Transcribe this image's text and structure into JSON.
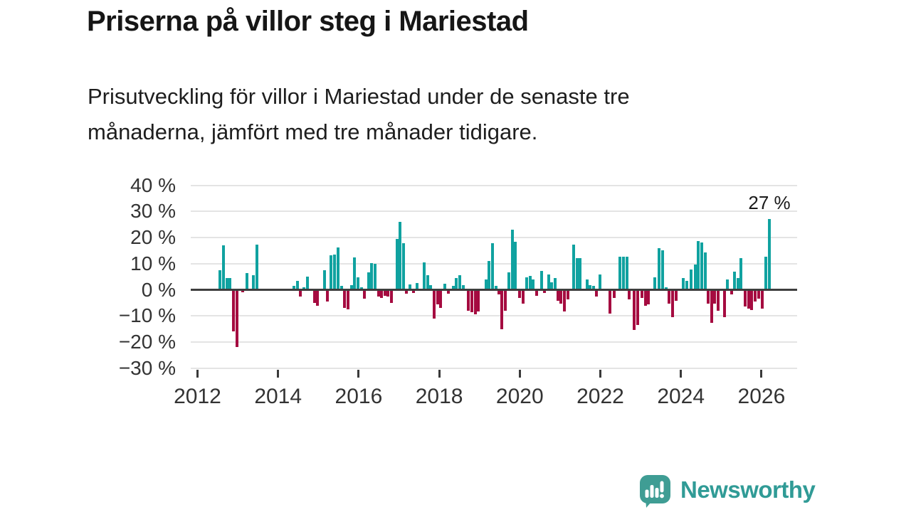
{
  "header": {
    "title": "Priserna på villor steg i Mariestad",
    "subtitle_line1": "Prisutveckling för villor i Mariestad under de senaste tre",
    "subtitle_line2": "månaderna, jämfört med tre månader tidigare."
  },
  "chart_data": {
    "type": "bar",
    "title": "Priserna på villor steg i Mariestad",
    "xlabel": "",
    "ylabel": "",
    "ylim": [
      -30,
      40
    ],
    "xlim": [
      2011.85,
      2026.9
    ],
    "grid": "horizontal",
    "legend": "none",
    "yticks": [
      {
        "v": 40,
        "label": "40 %"
      },
      {
        "v": 30,
        "label": "30 %"
      },
      {
        "v": 20,
        "label": "20 %"
      },
      {
        "v": 10,
        "label": "10 %"
      },
      {
        "v": 0,
        "label": "0 %"
      },
      {
        "v": -10,
        "label": "−10 %"
      },
      {
        "v": -20,
        "label": "−20 %"
      },
      {
        "v": -30,
        "label": "−30 %"
      }
    ],
    "xticks": [
      {
        "v": 2012,
        "label": "2012"
      },
      {
        "v": 2014,
        "label": "2014"
      },
      {
        "v": 2016,
        "label": "2016"
      },
      {
        "v": 2018,
        "label": "2018"
      },
      {
        "v": 2020,
        "label": "2020"
      },
      {
        "v": 2022,
        "label": "2022"
      },
      {
        "v": 2024,
        "label": "2024"
      },
      {
        "v": 2026,
        "label": "2026"
      }
    ],
    "annotation": {
      "label": "27 %",
      "x": 2026.19,
      "v": 27
    },
    "colors": {
      "positive": "#10a2a0",
      "negative": "#a50b40",
      "zero_line": "#3e3e3e",
      "grid": "#e4e4e4",
      "axis_text": "#333333"
    },
    "bars": [
      [
        2012.56,
        7.4
      ],
      [
        2012.64,
        17
      ],
      [
        2012.74,
        4.4
      ],
      [
        2012.81,
        4.4
      ],
      [
        2012.9,
        -16
      ],
      [
        2012.98,
        -22
      ],
      [
        2013.12,
        -1
      ],
      [
        2013.23,
        6.4
      ],
      [
        2013.39,
        5.6
      ],
      [
        2013.47,
        17.4
      ],
      [
        2014.4,
        1.4
      ],
      [
        2014.48,
        3.3
      ],
      [
        2014.56,
        -2.6
      ],
      [
        2014.64,
        1.0
      ],
      [
        2014.72,
        5.0
      ],
      [
        2014.9,
        -4.9
      ],
      [
        2014.98,
        -6.0
      ],
      [
        2015.15,
        7.4
      ],
      [
        2015.22,
        -4.5
      ],
      [
        2015.32,
        13.1
      ],
      [
        2015.4,
        13.5
      ],
      [
        2015.49,
        16.1
      ],
      [
        2015.57,
        1.4
      ],
      [
        2015.65,
        -7.0
      ],
      [
        2015.73,
        -7.5
      ],
      [
        2015.83,
        1.7
      ],
      [
        2015.9,
        12.3
      ],
      [
        2015.99,
        4.7
      ],
      [
        2016.07,
        1.0
      ],
      [
        2016.15,
        -3.5
      ],
      [
        2016.24,
        6.8
      ],
      [
        2016.32,
        10.3
      ],
      [
        2016.4,
        9.9
      ],
      [
        2016.49,
        -2.6
      ],
      [
        2016.57,
        -3.2
      ],
      [
        2016.66,
        -2.3
      ],
      [
        2016.73,
        -2.6
      ],
      [
        2016.81,
        -4.9
      ],
      [
        2016.95,
        19.5
      ],
      [
        2017.03,
        26
      ],
      [
        2017.12,
        17.8
      ],
      [
        2017.19,
        -1.4
      ],
      [
        2017.27,
        2.0
      ],
      [
        2017.37,
        -1.1
      ],
      [
        2017.45,
        2.5
      ],
      [
        2017.63,
        10.5
      ],
      [
        2017.71,
        5.6
      ],
      [
        2017.79,
        1.7
      ],
      [
        2017.88,
        -11.1
      ],
      [
        2017.96,
        -5.7
      ],
      [
        2018.04,
        -7.0
      ],
      [
        2018.14,
        2.3
      ],
      [
        2018.22,
        -1.6
      ],
      [
        2018.35,
        1.6
      ],
      [
        2018.43,
        4.4
      ],
      [
        2018.51,
        5.7
      ],
      [
        2018.6,
        1.8
      ],
      [
        2018.72,
        -8.1
      ],
      [
        2018.81,
        -8.6
      ],
      [
        2018.89,
        -9.5
      ],
      [
        2018.97,
        -8.4
      ],
      [
        2019.16,
        3.9
      ],
      [
        2019.24,
        11.1
      ],
      [
        2019.33,
        17.8
      ],
      [
        2019.41,
        1.4
      ],
      [
        2019.49,
        -1.7
      ],
      [
        2019.56,
        -15.0
      ],
      [
        2019.64,
        -8.1
      ],
      [
        2019.73,
        6.8
      ],
      [
        2019.81,
        23
      ],
      [
        2019.89,
        18.3
      ],
      [
        2020.0,
        -3.0
      ],
      [
        2020.08,
        -5.3
      ],
      [
        2020.17,
        4.8
      ],
      [
        2020.25,
        5.2
      ],
      [
        2020.33,
        4.1
      ],
      [
        2020.42,
        -2.2
      ],
      [
        2020.54,
        7.2
      ],
      [
        2020.62,
        -1.3
      ],
      [
        2020.71,
        5.9
      ],
      [
        2020.79,
        2.9
      ],
      [
        2020.87,
        4.4
      ],
      [
        2020.95,
        -4.3
      ],
      [
        2021.02,
        -5.2
      ],
      [
        2021.1,
        -8.4
      ],
      [
        2021.19,
        -3.6
      ],
      [
        2021.34,
        17.2
      ],
      [
        2021.42,
        12.1
      ],
      [
        2021.5,
        12.1
      ],
      [
        2021.67,
        4.1
      ],
      [
        2021.75,
        1.8
      ],
      [
        2021.84,
        1.4
      ],
      [
        2021.91,
        -2.5
      ],
      [
        2021.99,
        6.0
      ],
      [
        2022.24,
        -9.0
      ],
      [
        2022.34,
        -3.2
      ],
      [
        2022.49,
        12.8
      ],
      [
        2022.58,
        12.8
      ],
      [
        2022.66,
        12.8
      ],
      [
        2022.72,
        -3.8
      ],
      [
        2022.83,
        -15.5
      ],
      [
        2022.92,
        -13.4
      ],
      [
        2023.04,
        -3.1
      ],
      [
        2023.12,
        -6.0
      ],
      [
        2023.2,
        -5.7
      ],
      [
        2023.35,
        4.8
      ],
      [
        2023.46,
        15.9
      ],
      [
        2023.55,
        15.2
      ],
      [
        2023.63,
        1.0
      ],
      [
        2023.71,
        -5.2
      ],
      [
        2023.8,
        -10.6
      ],
      [
        2023.88,
        -4.3
      ],
      [
        2024.06,
        4.4
      ],
      [
        2024.14,
        3.5
      ],
      [
        2024.26,
        7.7
      ],
      [
        2024.35,
        9.8
      ],
      [
        2024.43,
        18.7
      ],
      [
        2024.51,
        18.1
      ],
      [
        2024.6,
        14.3
      ],
      [
        2024.68,
        -5.2
      ],
      [
        2024.76,
        -12.6
      ],
      [
        2024.84,
        -5.2
      ],
      [
        2024.93,
        -8.1
      ],
      [
        2025.08,
        -10.5
      ],
      [
        2025.16,
        4.1
      ],
      [
        2025.26,
        -1.8
      ],
      [
        2025.33,
        6.9
      ],
      [
        2025.41,
        4.5
      ],
      [
        2025.48,
        12.1
      ],
      [
        2025.6,
        -6.3
      ],
      [
        2025.68,
        -7.3
      ],
      [
        2025.76,
        -7.7
      ],
      [
        2025.85,
        -4.5
      ],
      [
        2025.93,
        -3.5
      ],
      [
        2026.01,
        -7.3
      ],
      [
        2026.11,
        12.8
      ],
      [
        2026.19,
        27
      ]
    ]
  },
  "footer": {
    "brand": "Newsworthy"
  }
}
